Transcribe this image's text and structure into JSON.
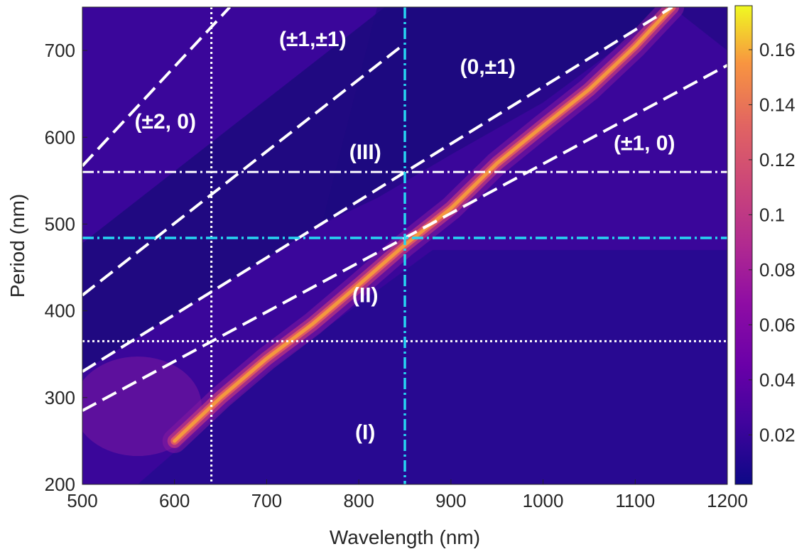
{
  "chart_data": {
    "type": "heatmap",
    "title": "",
    "xlabel": "Wavelength (nm)",
    "ylabel": "Period (nm)",
    "xlim": [
      500,
      1200
    ],
    "ylim": [
      200,
      750
    ],
    "xticks": [
      500,
      600,
      700,
      800,
      900,
      1000,
      1100,
      1200
    ],
    "yticks": [
      200,
      300,
      400,
      500,
      600,
      700
    ],
    "colormap": "plasma",
    "colorbar": {
      "range": [
        0.002,
        0.176
      ],
      "ticks": [
        0.02,
        0.04,
        0.06,
        0.08,
        0.1,
        0.12,
        0.14,
        0.16
      ],
      "tick_labels": [
        "0.02",
        "0.04",
        "0.06",
        "0.08",
        "0.1",
        "0.12",
        "0.14",
        "0.16"
      ]
    },
    "grid": false,
    "diffraction_lines": [
      {
        "label": "(±1, 0)",
        "points": [
          [
            500,
            285
          ],
          [
            1200,
            683
          ]
        ]
      },
      {
        "label": "(0,±1)",
        "points": [
          [
            500,
            330
          ],
          [
            1140,
            750
          ]
        ]
      },
      {
        "label": "(±1,±1)",
        "points": [
          [
            500,
            418
          ],
          [
            850,
            708
          ]
        ]
      },
      {
        "label": "(±2, 0)",
        "points": [
          [
            500,
            567
          ],
          [
            660,
            750
          ]
        ]
      }
    ],
    "resonance_ridge": [
      [
        600,
        250
      ],
      [
        650,
        300
      ],
      [
        700,
        345
      ],
      [
        750,
        385
      ],
      [
        800,
        430
      ],
      [
        850,
        476
      ],
      [
        900,
        518
      ],
      [
        950,
        570
      ],
      [
        1000,
        613
      ],
      [
        1050,
        655
      ],
      [
        1100,
        705
      ],
      [
        1140,
        750
      ]
    ],
    "reference_lines": {
      "vertical_cyan": 850,
      "vertical_white_dotted": 640,
      "horizontal_cyan": 484,
      "horizontal_white_dashdot": 560,
      "horizontal_white_dotted": 365
    },
    "annotations": [
      {
        "text": "(±2, 0)",
        "x": 590,
        "y": 610
      },
      {
        "text": "(±1,±1)",
        "x": 750,
        "y": 705
      },
      {
        "text": "(0,±1)",
        "x": 940,
        "y": 673
      },
      {
        "text": "(III)",
        "x": 807,
        "y": 575
      },
      {
        "text": "(±1, 0)",
        "x": 1110,
        "y": 585
      },
      {
        "text": "(II)",
        "x": 807,
        "y": 410
      },
      {
        "text": "(I)",
        "x": 807,
        "y": 252
      }
    ]
  }
}
